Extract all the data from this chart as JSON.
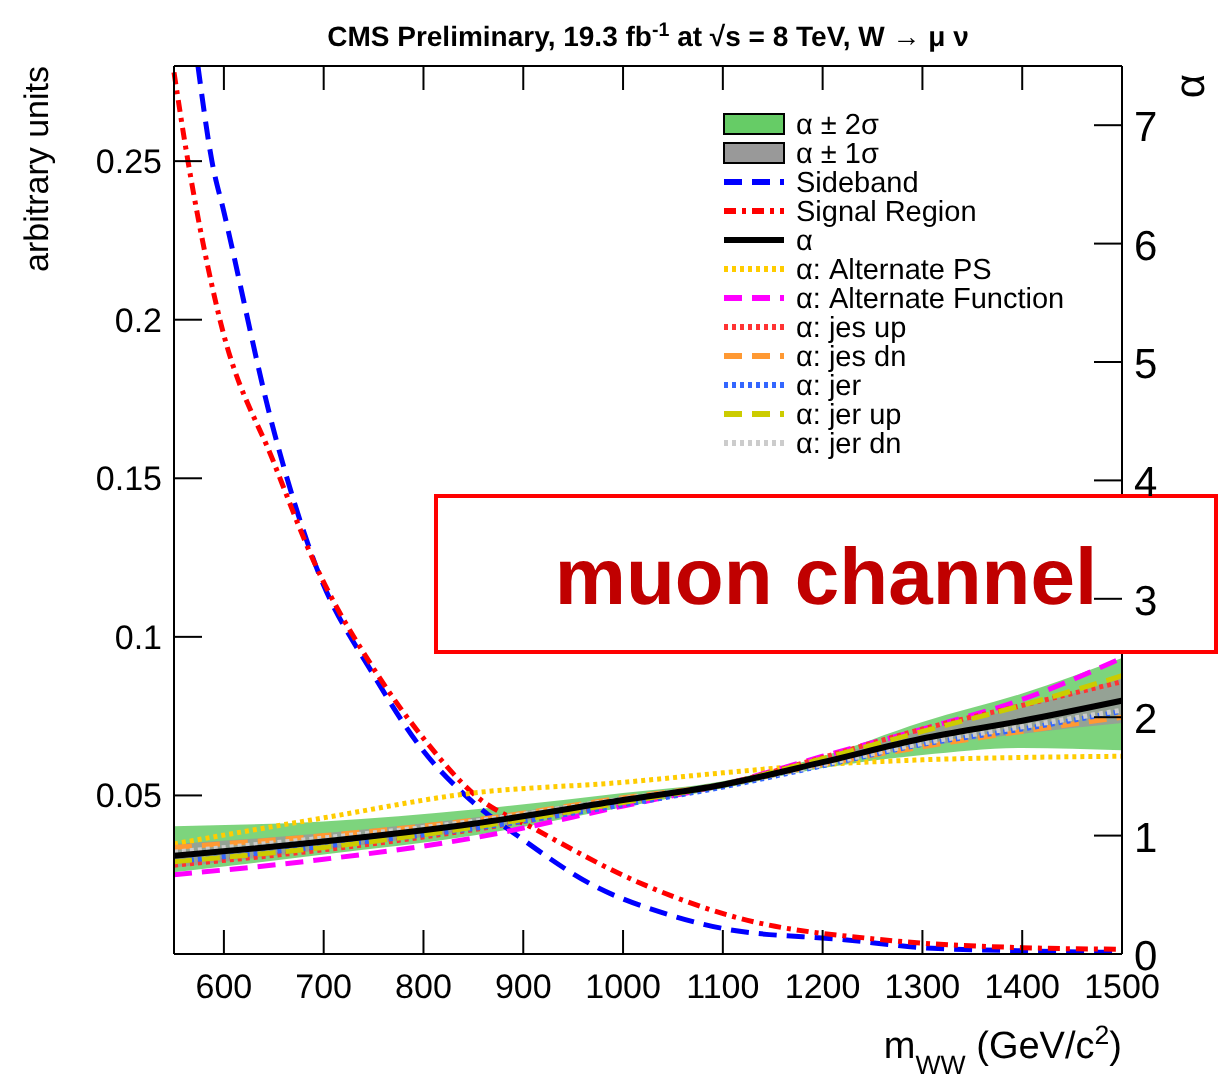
{
  "chart_data": {
    "type": "line",
    "title": "CMS Preliminary, 19.3 fb$^{-1}$ at √s = 8 TeV, W → μ ν",
    "xlabel": "m$_{WW}$ (GeV/c$^{2}$)",
    "ylabel": "arbitrary units",
    "y2label": "α",
    "xlim": [
      550,
      1500
    ],
    "xticks": [
      600,
      700,
      800,
      900,
      1000,
      1100,
      1200,
      1300,
      1400,
      1500
    ],
    "ylim": [
      0,
      0.28
    ],
    "yticks": [
      0.05,
      0.1,
      0.15,
      0.2,
      0.25
    ],
    "y2lim": [
      0,
      7.5
    ],
    "y2ticks": [
      0,
      1,
      2,
      3,
      4,
      5,
      6,
      7
    ],
    "legend": "top right",
    "grid": false,
    "annotations": [
      "muon channel"
    ],
    "x": [
      550,
      700,
      850,
      1000,
      1100,
      1200,
      1300,
      1400,
      1500
    ],
    "series": [
      {
        "name": "α ± 2σ",
        "type": "line",
        "axis": "y2",
        "color": "#66cc66",
        "values": [
          null,
          null,
          null,
          null,
          null,
          null,
          null,
          null,
          null
        ],
        "lower": [
          0.69,
          0.84,
          1.0,
          1.24,
          1.4,
          1.57,
          1.68,
          1.74,
          1.72
        ],
        "upper": [
          1.08,
          1.12,
          1.22,
          1.36,
          1.46,
          1.67,
          1.96,
          2.2,
          2.5
        ]
      },
      {
        "name": "α ± 1σ",
        "type": "line",
        "axis": "y2",
        "color": "#999999",
        "values": [
          null,
          null,
          null,
          null,
          null,
          null,
          null,
          null,
          null
        ],
        "lower": [
          0.73,
          0.88,
          1.05,
          1.27,
          1.41,
          1.59,
          1.75,
          1.86,
          1.95
        ],
        "upper": [
          0.93,
          1.02,
          1.15,
          1.33,
          1.45,
          1.65,
          1.89,
          2.08,
          2.33
        ]
      },
      {
        "name": "Sideband",
        "color": "#0000ff",
        "line_style": "dashed",
        "x": [
          574,
          588,
          600,
          650,
          692,
          750,
          800,
          842,
          900,
          968,
          1050,
          1106,
          1222,
          1300,
          1400,
          1500
        ],
        "values": [
          0.28,
          0.25,
          0.234,
          0.165,
          0.1225,
          0.088,
          0.064,
          0.05,
          0.036,
          0.022,
          0.012,
          0.0077,
          0.0045,
          0.002,
          0.001,
          0.0005
        ]
      },
      {
        "name": "Signal Region",
        "color": "#ff0000",
        "line_style": "dashdot",
        "x": [
          550,
          564,
          596,
          650,
          692,
          750,
          800,
          852,
          914,
          1014,
          1114,
          1260,
          1400,
          1500
        ],
        "values": [
          0.278,
          0.25,
          0.2,
          0.155,
          0.1225,
          0.09,
          0.068,
          0.05,
          0.039,
          0.0228,
          0.0115,
          0.0045,
          0.002,
          0.0015
        ]
      },
      {
        "name": "α",
        "axis": "y2",
        "color": "#000000",
        "line_style": "solid",
        "values": [
          0.83,
          0.95,
          1.1,
          1.3,
          1.43,
          1.62,
          1.82,
          1.97,
          2.14
        ]
      },
      {
        "name": "α: Alternate PS",
        "axis": "y2",
        "color": "#ffcc00",
        "line_style": "dotted",
        "values": [
          0.93,
          1.15,
          1.36,
          1.45,
          1.53,
          1.6,
          1.64,
          1.66,
          1.67
        ]
      },
      {
        "name": "α: Alternate Function",
        "axis": "y2",
        "color": "#ff00ff",
        "line_style": "dashed",
        "values": [
          0.67,
          0.8,
          0.98,
          1.25,
          1.43,
          1.67,
          1.9,
          2.15,
          2.5
        ]
      },
      {
        "name": "α: jes up",
        "axis": "y2",
        "color": "#ff3333",
        "line_style": "dotted",
        "values": [
          0.75,
          0.88,
          1.05,
          1.27,
          1.43,
          1.66,
          1.9,
          2.1,
          2.3
        ]
      },
      {
        "name": "α: jes dn",
        "axis": "y2",
        "color": "#ff9933",
        "line_style": "dashed",
        "values": [
          0.9,
          1.0,
          1.13,
          1.32,
          1.43,
          1.6,
          1.75,
          1.88,
          2.0
        ]
      },
      {
        "name": "α: jer",
        "axis": "y2",
        "color": "#3366ff",
        "line_style": "dotted",
        "values": [
          0.78,
          0.91,
          1.06,
          1.26,
          1.41,
          1.59,
          1.77,
          1.9,
          2.05
        ]
      },
      {
        "name": "α: jer up",
        "axis": "y2",
        "color": "#cccc00",
        "line_style": "dashed",
        "values": [
          0.78,
          0.9,
          1.07,
          1.28,
          1.43,
          1.65,
          1.88,
          2.1,
          2.35
        ]
      },
      {
        "name": "α: jer dn",
        "axis": "y2",
        "color": "#cccccc",
        "line_style": "dotted",
        "values": [
          0.86,
          0.98,
          1.12,
          1.31,
          1.43,
          1.6,
          1.78,
          1.92,
          2.06
        ]
      }
    ]
  }
}
